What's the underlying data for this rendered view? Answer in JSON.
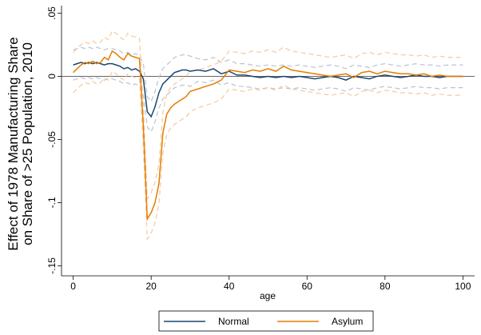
{
  "chart_data": {
    "type": "line",
    "ylabel": [
      "Effect of 1978 Manufacturing Share",
      "on Share of >25 Population, 2010"
    ],
    "xlabel": "age",
    "x": [
      0,
      1,
      2,
      3,
      4,
      5,
      6,
      7,
      8,
      9,
      10,
      11,
      12,
      13,
      14,
      15,
      16,
      17,
      18,
      19,
      20,
      21,
      22,
      23,
      24,
      25,
      26,
      27,
      28,
      29,
      30,
      32,
      34,
      36,
      38,
      40,
      42,
      44,
      46,
      48,
      50,
      52,
      54,
      56,
      58,
      60,
      62,
      64,
      66,
      68,
      70,
      72,
      74,
      76,
      78,
      80,
      82,
      84,
      86,
      88,
      90,
      92,
      94,
      96,
      98,
      100
    ],
    "xlim": [
      -3,
      103
    ],
    "xticks": [
      0,
      20,
      40,
      60,
      80,
      100
    ],
    "ylim": [
      -0.158,
      0.056
    ],
    "yticks": [
      {
        "value": -0.15,
        "label": "-.15"
      },
      {
        "value": -0.1,
        "label": "-.1"
      },
      {
        "value": -0.05,
        "label": "-.05"
      },
      0,
      {
        "value": 0.05,
        "label": ".05"
      }
    ],
    "zero_line": true,
    "legend": "bottom",
    "series": [
      {
        "name": "Normal",
        "color": "#1a476f",
        "ci_color": "#b8c4d2",
        "values": [
          0.009,
          0.01,
          0.011,
          0.01,
          0.011,
          0.01,
          0.011,
          0.01,
          0.009,
          0.01,
          0.01,
          0.009,
          0.008,
          0.006,
          0.007,
          0.005,
          0.006,
          0.004,
          -0.002,
          -0.028,
          -0.032,
          -0.024,
          -0.013,
          -0.006,
          -0.003,
          0,
          0.003,
          0.004,
          0.005,
          0.005,
          0.004,
          0.005,
          0.004,
          0.006,
          0.002,
          0.004,
          0.001,
          0.001,
          0,
          -0.001,
          0,
          -0.001,
          0,
          -0.001,
          0,
          -0.001,
          -0.002,
          -0.001,
          0,
          -0.001,
          -0.003,
          0,
          -0.001,
          -0.002,
          0,
          0.001,
          0,
          -0.001,
          0,
          0.001,
          0,
          0,
          -0.001,
          0,
          0,
          0
        ],
        "ci_upper": [
          0.021,
          0.022,
          0.023,
          0.022,
          0.023,
          0.022,
          0.023,
          0.022,
          0.021,
          0.022,
          0.022,
          0.021,
          0.02,
          0.018,
          0.019,
          0.017,
          0.018,
          0.016,
          0.01,
          -0.016,
          -0.02,
          -0.012,
          -0.001,
          0.006,
          0.009,
          0.012,
          0.015,
          0.016,
          0.017,
          0.017,
          0.016,
          0.014,
          0.013,
          0.015,
          0.011,
          0.013,
          0.01,
          0.01,
          0.009,
          0.008,
          0.009,
          0.008,
          0.009,
          0.008,
          0.009,
          0.008,
          0.007,
          0.008,
          0.009,
          0.008,
          0.006,
          0.009,
          0.008,
          0.007,
          0.009,
          0.01,
          0.009,
          0.008,
          0.009,
          0.01,
          0.009,
          0.009,
          0.008,
          0.009,
          0.009,
          0.009
        ],
        "ci_lower": [
          -0.003,
          -0.002,
          -0.001,
          -0.002,
          -0.001,
          -0.002,
          -0.001,
          -0.002,
          -0.003,
          -0.002,
          -0.002,
          -0.003,
          -0.004,
          -0.006,
          -0.005,
          -0.007,
          -0.006,
          -0.008,
          -0.014,
          -0.04,
          -0.044,
          -0.036,
          -0.025,
          -0.018,
          -0.015,
          -0.012,
          -0.009,
          -0.008,
          -0.007,
          -0.007,
          -0.008,
          -0.004,
          -0.005,
          -0.003,
          -0.007,
          -0.005,
          -0.008,
          -0.008,
          -0.009,
          -0.01,
          -0.009,
          -0.01,
          -0.009,
          -0.01,
          -0.009,
          -0.01,
          -0.011,
          -0.01,
          -0.009,
          -0.01,
          -0.012,
          -0.009,
          -0.01,
          -0.011,
          -0.009,
          -0.008,
          -0.009,
          -0.01,
          -0.009,
          -0.008,
          -0.009,
          -0.009,
          -0.01,
          -0.009,
          -0.009,
          -0.009
        ]
      },
      {
        "name": "Asylum",
        "color": "#e37e00",
        "ci_color": "#f6c99b",
        "values": [
          0.003,
          0.006,
          0.009,
          0.011,
          0.01,
          0.012,
          0.01,
          0.011,
          0.015,
          0.013,
          0.02,
          0.018,
          0.015,
          0.013,
          0.018,
          0.016,
          0.015,
          0.014,
          -0.04,
          -0.113,
          -0.108,
          -0.1,
          -0.085,
          -0.045,
          -0.03,
          -0.025,
          -0.022,
          -0.02,
          -0.018,
          -0.016,
          -0.012,
          -0.01,
          -0.008,
          -0.006,
          -0.003,
          0.005,
          0.004,
          0.003,
          0.005,
          0.004,
          0.006,
          0.004,
          0.008,
          0.005,
          0.004,
          0.003,
          0.002,
          0.001,
          0,
          0.001,
          0.002,
          -0.001,
          0.003,
          0.004,
          0.002,
          0.004,
          0.003,
          0.002,
          0.002,
          0.001,
          0.002,
          0,
          0.001,
          0,
          0,
          0
        ],
        "ci_upper": [
          0.019,
          0.022,
          0.025,
          0.027,
          0.026,
          0.028,
          0.026,
          0.027,
          0.031,
          0.029,
          0.036,
          0.034,
          0.031,
          0.029,
          0.034,
          0.032,
          0.031,
          0.03,
          -0.024,
          -0.097,
          -0.092,
          -0.084,
          -0.069,
          -0.029,
          -0.014,
          -0.009,
          -0.006,
          -0.004,
          -0.002,
          0,
          0.004,
          0.005,
          0.007,
          0.009,
          0.012,
          0.02,
          0.019,
          0.018,
          0.02,
          0.019,
          0.021,
          0.019,
          0.023,
          0.02,
          0.019,
          0.018,
          0.017,
          0.016,
          0.015,
          0.016,
          0.017,
          0.014,
          0.018,
          0.019,
          0.017,
          0.019,
          0.018,
          0.017,
          0.017,
          0.016,
          0.017,
          0.015,
          0.016,
          0.015,
          0.015,
          0.015
        ],
        "ci_lower": [
          -0.013,
          -0.01,
          -0.007,
          -0.005,
          -0.006,
          -0.004,
          -0.006,
          -0.005,
          -0.001,
          -0.003,
          0.004,
          0.002,
          -0.001,
          -0.003,
          0.002,
          0,
          -0.001,
          -0.002,
          -0.056,
          -0.129,
          -0.124,
          -0.116,
          -0.101,
          -0.061,
          -0.046,
          -0.041,
          -0.038,
          -0.036,
          -0.034,
          -0.032,
          -0.028,
          -0.025,
          -0.023,
          -0.021,
          -0.018,
          -0.01,
          -0.011,
          -0.012,
          -0.01,
          -0.011,
          -0.009,
          -0.011,
          -0.007,
          -0.01,
          -0.011,
          -0.012,
          -0.013,
          -0.014,
          -0.015,
          -0.014,
          -0.013,
          -0.016,
          -0.012,
          -0.011,
          -0.013,
          -0.011,
          -0.012,
          -0.013,
          -0.013,
          -0.014,
          -0.013,
          -0.015,
          -0.014,
          -0.015,
          -0.015,
          -0.015
        ]
      }
    ]
  }
}
